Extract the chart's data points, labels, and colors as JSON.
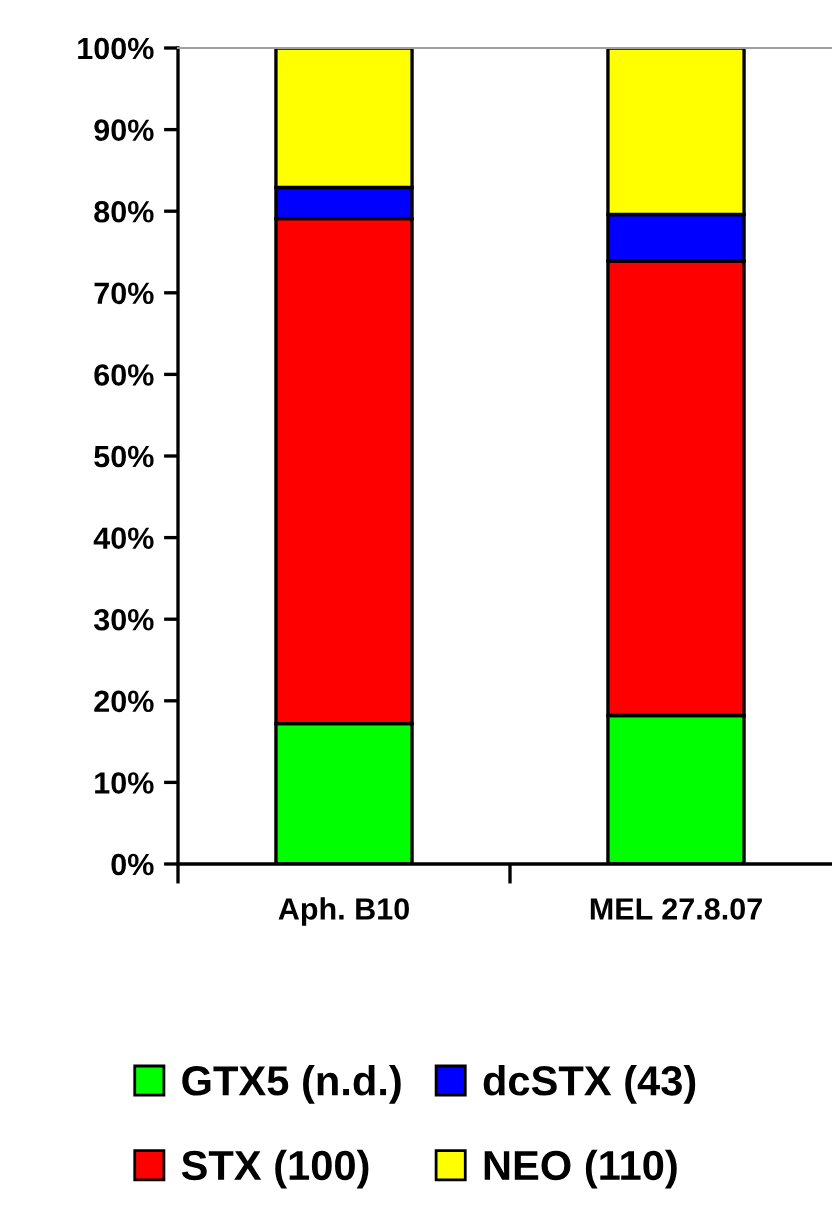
{
  "chart_data": {
    "type": "bar",
    "stacked": true,
    "categories": [
      "Aph. B10",
      "MEL 27.8.07"
    ],
    "series": [
      {
        "name": "GTX5 (n.d.)",
        "color": "#00ff00",
        "values": [
          17.2,
          18.2
        ]
      },
      {
        "name": "STX (100)",
        "color": "#ff0000",
        "values": [
          61.9,
          55.7
        ]
      },
      {
        "name": "dcSTX (43)",
        "color": "#0000ff",
        "values": [
          3.8,
          5.7
        ]
      },
      {
        "name": "NEO (110)",
        "color": "#ffff00",
        "values": [
          17.1,
          20.4
        ]
      }
    ],
    "ylim": [
      0,
      100
    ],
    "yticks": [
      {
        "value": 0,
        "label": "0%"
      },
      {
        "value": 10,
        "label": "10%"
      },
      {
        "value": 20,
        "label": "20%"
      },
      {
        "value": 30,
        "label": "30%"
      },
      {
        "value": 40,
        "label": "40%"
      },
      {
        "value": 50,
        "label": "50%"
      },
      {
        "value": 60,
        "label": "60%"
      },
      {
        "value": 70,
        "label": "70%"
      },
      {
        "value": 80,
        "label": "80%"
      },
      {
        "value": 90,
        "label": "90%"
      },
      {
        "value": 100,
        "label": "100%"
      }
    ],
    "grid": false,
    "legend": "bottom"
  }
}
